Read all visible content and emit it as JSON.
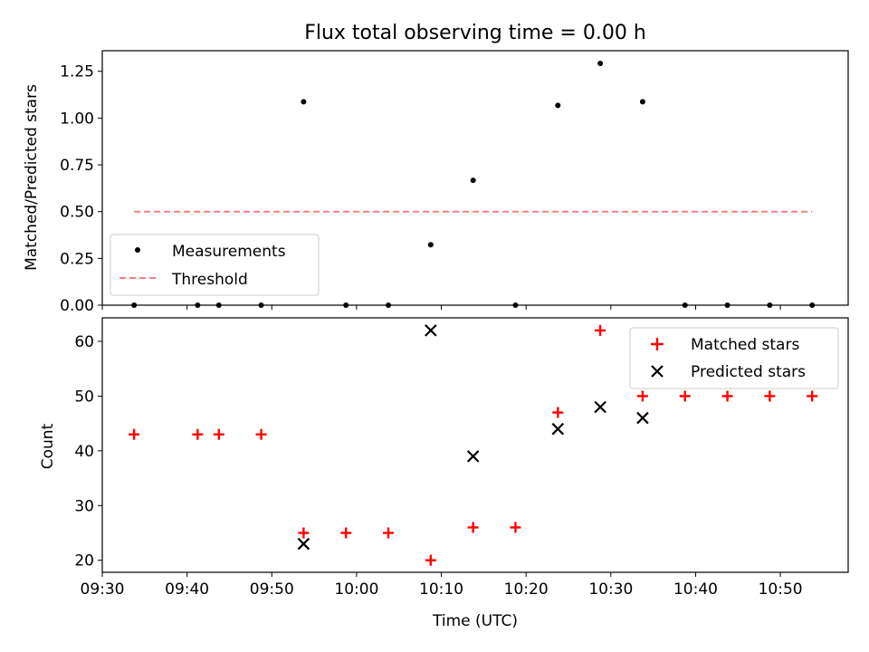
{
  "chart_data": [
    {
      "type": "scatter",
      "title": "Flux total observing time = 0.00 h",
      "xlabel": "",
      "ylabel": "Matched/Predicted stars",
      "xlim_minutes": [
        570,
        658
      ],
      "ylim": [
        0,
        1.36
      ],
      "yticks": [
        0.0,
        0.25,
        0.5,
        0.75,
        1.0,
        1.25
      ],
      "ytick_labels": [
        "0.00",
        "0.25",
        "0.50",
        "0.75",
        "1.00",
        "1.25"
      ],
      "legend": "bottom-left",
      "series": [
        {
          "name": "Measurements",
          "marker": "dot",
          "color": "#000000",
          "x": [
            573.75,
            581.25,
            583.75,
            588.75,
            593.75,
            598.75,
            603.75,
            608.75,
            613.75,
            618.75,
            623.75,
            628.75,
            633.75,
            638.75,
            643.75,
            648.75,
            653.75
          ],
          "y": [
            0,
            0,
            0,
            0,
            1.087,
            0,
            0,
            0.323,
            0.667,
            0,
            1.068,
            1.292,
            1.087,
            0,
            0,
            0,
            0
          ]
        },
        {
          "name": "Threshold",
          "marker": "dashed-line",
          "color": "#f08080",
          "x": [
            573.75,
            653.75
          ],
          "y": [
            0.5,
            0.5
          ]
        }
      ]
    },
    {
      "type": "scatter",
      "xlabel": "Time (UTC)",
      "ylabel": "Count",
      "xlim_minutes": [
        570,
        658
      ],
      "ylim": [
        17.8,
        64.3
      ],
      "yticks": [
        20,
        30,
        40,
        50,
        60
      ],
      "ytick_labels": [
        "20",
        "30",
        "40",
        "50",
        "60"
      ],
      "xticks_minutes": [
        570,
        580,
        590,
        600,
        610,
        620,
        630,
        640,
        650
      ],
      "xtick_labels": [
        "09:30",
        "09:40",
        "09:50",
        "10:00",
        "10:10",
        "10:20",
        "10:30",
        "10:40",
        "10:50"
      ],
      "legend": "top-right",
      "series": [
        {
          "name": "Matched stars",
          "marker": "plus",
          "color": "#ff0000",
          "x": [
            573.75,
            581.25,
            583.75,
            588.75,
            593.75,
            598.75,
            603.75,
            608.75,
            613.75,
            618.75,
            623.75,
            628.75,
            633.75,
            638.75,
            643.75,
            648.75,
            653.75
          ],
          "y": [
            43,
            43,
            43,
            43,
            25,
            25,
            25,
            20,
            26,
            26,
            47,
            62,
            50,
            50,
            50,
            50,
            50
          ]
        },
        {
          "name": "Predicted stars",
          "marker": "x",
          "color": "#000000",
          "x": [
            593.75,
            608.75,
            613.75,
            623.75,
            628.75,
            633.75
          ],
          "y": [
            23,
            62,
            39,
            44,
            48,
            46
          ]
        }
      ]
    }
  ]
}
